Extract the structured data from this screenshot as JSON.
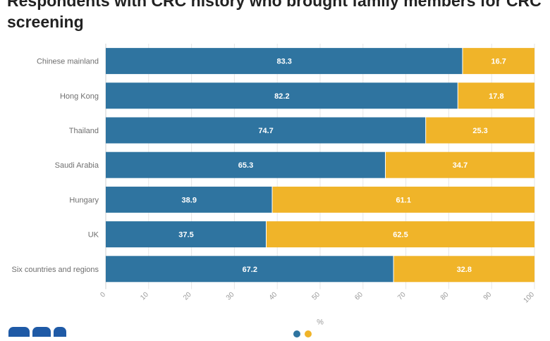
{
  "title": {
    "line1": "Respondents with CRC history who brought family members for CRC",
    "line2": "screening"
  },
  "colors": {
    "series1": "#2f74a0",
    "series2": "#f0b429",
    "grid": "#e6e6e6",
    "axis": "#cfcfcf"
  },
  "chart_data": {
    "type": "bar",
    "orientation": "horizontal",
    "stacked": true,
    "categories": [
      "Chinese mainland",
      "Hong Kong",
      "Thailand",
      "Saudi Arabia",
      "Hungary",
      "UK",
      "Six countries and regions"
    ],
    "series": [
      {
        "values": [
          83.3,
          82.2,
          74.7,
          65.3,
          38.9,
          37.5,
          67.2
        ],
        "color": "#2f74a0"
      },
      {
        "values": [
          16.7,
          17.8,
          25.3,
          34.7,
          61.1,
          62.5,
          32.8
        ],
        "color": "#f0b429"
      }
    ],
    "xlabel": "%",
    "xlim": [
      0,
      100
    ],
    "xticks": [
      0,
      10,
      20,
      30,
      40,
      50,
      60,
      70,
      80,
      90,
      100
    ],
    "grid": true,
    "legend": "none"
  }
}
